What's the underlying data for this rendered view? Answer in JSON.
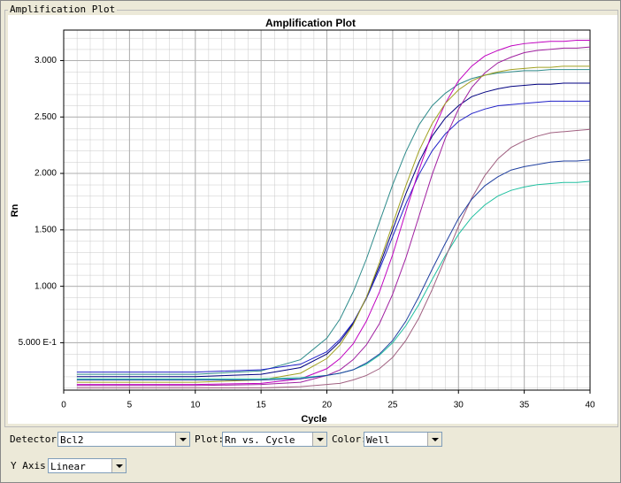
{
  "window_title": "Amplification Plot",
  "chart_data": {
    "type": "line",
    "title": "Amplification Plot",
    "xlabel": "Cycle",
    "ylabel": "Rn",
    "x": [
      1,
      5,
      10,
      15,
      18,
      20,
      21,
      22,
      23,
      24,
      25,
      26,
      27,
      28,
      29,
      30,
      31,
      32,
      33,
      34,
      35,
      36,
      37,
      38,
      39,
      40
    ],
    "xlim": [
      0,
      40
    ],
    "xticks": [
      0,
      5,
      10,
      15,
      20,
      25,
      30,
      35,
      40
    ],
    "ylim": [
      0.08,
      3.27
    ],
    "yticks": [
      {
        "value": 0.5,
        "label": "5.000 E-1"
      },
      {
        "value": 1.0,
        "label": "1.000"
      },
      {
        "value": 1.5,
        "label": "1.500"
      },
      {
        "value": 2.0,
        "label": "2.000"
      },
      {
        "value": 2.5,
        "label": "2.500"
      },
      {
        "value": 3.0,
        "label": "3.000"
      }
    ],
    "grid": true,
    "series": [
      {
        "color": "#2e8b8b",
        "values": [
          0.22,
          0.22,
          0.22,
          0.25,
          0.35,
          0.54,
          0.71,
          0.95,
          1.24,
          1.57,
          1.9,
          2.19,
          2.43,
          2.6,
          2.71,
          2.79,
          2.84,
          2.87,
          2.89,
          2.9,
          2.91,
          2.91,
          2.92,
          2.92,
          2.92,
          2.92
        ]
      },
      {
        "color": "#2020c8",
        "values": [
          0.24,
          0.24,
          0.24,
          0.26,
          0.31,
          0.42,
          0.53,
          0.68,
          0.89,
          1.15,
          1.44,
          1.73,
          1.99,
          2.2,
          2.35,
          2.46,
          2.53,
          2.57,
          2.6,
          2.61,
          2.62,
          2.63,
          2.64,
          2.64,
          2.64,
          2.64
        ]
      },
      {
        "color": "#000080",
        "values": [
          0.2,
          0.2,
          0.2,
          0.22,
          0.28,
          0.4,
          0.51,
          0.67,
          0.9,
          1.18,
          1.5,
          1.82,
          2.1,
          2.33,
          2.49,
          2.6,
          2.68,
          2.72,
          2.75,
          2.77,
          2.78,
          2.79,
          2.79,
          2.8,
          2.8,
          2.8
        ]
      },
      {
        "color": "#a020a0",
        "values": [
          0.12,
          0.12,
          0.12,
          0.13,
          0.15,
          0.21,
          0.26,
          0.35,
          0.48,
          0.67,
          0.93,
          1.25,
          1.62,
          1.99,
          2.31,
          2.57,
          2.76,
          2.89,
          2.98,
          3.03,
          3.07,
          3.09,
          3.1,
          3.11,
          3.11,
          3.12
        ]
      },
      {
        "color": "#c000c0",
        "values": [
          0.13,
          0.13,
          0.13,
          0.14,
          0.18,
          0.27,
          0.36,
          0.49,
          0.69,
          0.95,
          1.28,
          1.66,
          2.03,
          2.36,
          2.62,
          2.82,
          2.95,
          3.04,
          3.09,
          3.13,
          3.15,
          3.16,
          3.17,
          3.17,
          3.18,
          3.18
        ]
      },
      {
        "color": "#a0a020",
        "values": [
          0.15,
          0.15,
          0.15,
          0.17,
          0.23,
          0.36,
          0.48,
          0.66,
          0.9,
          1.21,
          1.55,
          1.89,
          2.2,
          2.44,
          2.62,
          2.74,
          2.82,
          2.87,
          2.9,
          2.92,
          2.93,
          2.94,
          2.94,
          2.95,
          2.95,
          2.95
        ]
      },
      {
        "color": "#20c0a0",
        "values": [
          0.18,
          0.18,
          0.18,
          0.18,
          0.19,
          0.21,
          0.23,
          0.26,
          0.31,
          0.39,
          0.5,
          0.65,
          0.84,
          1.06,
          1.27,
          1.46,
          1.61,
          1.72,
          1.8,
          1.85,
          1.88,
          1.9,
          1.91,
          1.92,
          1.92,
          1.93
        ]
      },
      {
        "color": "#a06080",
        "values": [
          0.1,
          0.1,
          0.1,
          0.1,
          0.11,
          0.13,
          0.14,
          0.17,
          0.21,
          0.27,
          0.37,
          0.52,
          0.72,
          0.97,
          1.25,
          1.53,
          1.78,
          1.98,
          2.13,
          2.23,
          2.29,
          2.33,
          2.36,
          2.37,
          2.38,
          2.39
        ]
      },
      {
        "color": "#2040a0",
        "values": [
          0.17,
          0.17,
          0.17,
          0.17,
          0.18,
          0.21,
          0.23,
          0.26,
          0.32,
          0.4,
          0.52,
          0.69,
          0.91,
          1.15,
          1.38,
          1.6,
          1.77,
          1.89,
          1.97,
          2.03,
          2.06,
          2.08,
          2.1,
          2.11,
          2.11,
          2.12
        ]
      }
    ]
  },
  "controls": [
    {
      "label": "Detector:",
      "value": "Bcl2"
    },
    {
      "label": "Plot:",
      "value": "Rn vs. Cycle"
    },
    {
      "label": "Color:",
      "value": "Well"
    },
    {
      "label": "Y Axis:",
      "value": "Linear"
    }
  ]
}
